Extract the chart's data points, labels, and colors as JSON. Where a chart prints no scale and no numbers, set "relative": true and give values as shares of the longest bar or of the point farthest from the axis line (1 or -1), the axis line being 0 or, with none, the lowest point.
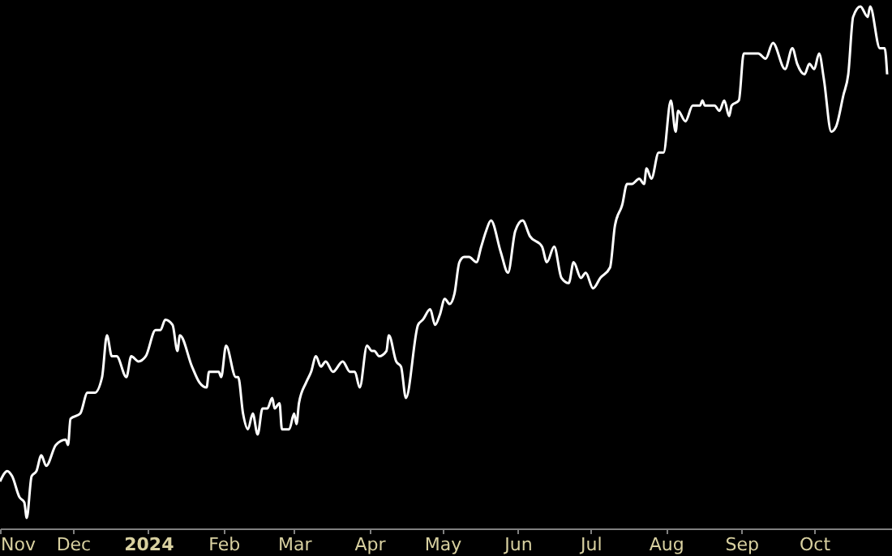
{
  "chart_data": {
    "type": "line",
    "relative": true,
    "x": [
      "2023-11-01",
      "2023-11-04",
      "2023-11-06",
      "2023-11-09",
      "2023-11-11",
      "2023-11-12",
      "2023-11-14",
      "2023-11-16",
      "2023-11-18",
      "2023-11-20",
      "2023-11-24",
      "2023-11-28",
      "2023-11-29",
      "2023-11-30",
      "2023-12-04",
      "2023-12-07",
      "2023-12-10",
      "2023-12-13",
      "2023-12-15",
      "2023-12-17",
      "2023-12-19",
      "2023-12-23",
      "2023-12-25",
      "2023-12-28",
      "2023-12-31",
      "2024-01-04",
      "2024-01-06",
      "2024-01-08",
      "2024-01-11",
      "2024-01-13",
      "2024-01-14",
      "2024-01-19",
      "2024-01-22",
      "2024-01-25",
      "2024-01-26",
      "2024-01-30",
      "2024-01-31",
      "2024-02-02",
      "2024-02-06",
      "2024-02-07",
      "2024-02-09",
      "2024-02-11",
      "2024-02-13",
      "2024-02-15",
      "2024-02-17",
      "2024-02-19",
      "2024-02-21",
      "2024-02-22",
      "2024-02-24",
      "2024-02-25",
      "2024-02-28",
      "2024-03-01",
      "2024-03-02",
      "2024-03-03",
      "2024-03-06",
      "2024-03-08",
      "2024-03-10",
      "2024-03-12",
      "2024-03-14",
      "2024-03-17",
      "2024-03-21",
      "2024-03-24",
      "2024-03-26",
      "2024-03-28",
      "2024-03-31",
      "2024-04-02",
      "2024-04-03",
      "2024-04-05",
      "2024-04-08",
      "2024-04-09",
      "2024-04-12",
      "2024-04-14",
      "2024-04-16",
      "2024-04-21",
      "2024-04-23",
      "2024-04-26",
      "2024-04-28",
      "2024-04-30",
      "2024-05-02",
      "2024-05-04",
      "2024-05-06",
      "2024-05-08",
      "2024-05-10",
      "2024-05-12",
      "2024-05-15",
      "2024-05-17",
      "2024-05-19",
      "2024-05-21",
      "2024-05-25",
      "2024-05-28",
      "2024-05-31",
      "2024-06-03",
      "2024-06-06",
      "2024-06-11",
      "2024-06-13",
      "2024-06-16",
      "2024-06-19",
      "2024-06-22",
      "2024-06-24",
      "2024-06-27",
      "2024-06-29",
      "2024-07-02",
      "2024-07-05",
      "2024-07-09",
      "2024-07-11",
      "2024-07-14",
      "2024-07-16",
      "2024-07-18",
      "2024-07-21",
      "2024-07-23",
      "2024-07-24",
      "2024-07-26",
      "2024-07-29",
      "2024-07-31",
      "2024-08-03",
      "2024-08-05",
      "2024-08-06",
      "2024-08-09",
      "2024-08-12",
      "2024-08-15",
      "2024-08-16",
      "2024-08-17",
      "2024-08-21",
      "2024-08-23",
      "2024-08-25",
      "2024-08-27",
      "2024-08-28",
      "2024-08-31",
      "2024-09-02",
      "2024-09-05",
      "2024-09-08",
      "2024-09-11",
      "2024-09-14",
      "2024-09-19",
      "2024-09-22",
      "2024-09-24",
      "2024-09-27",
      "2024-09-29",
      "2024-10-01",
      "2024-10-03",
      "2024-10-05",
      "2024-10-08",
      "2024-10-10",
      "2024-10-13",
      "2024-10-15",
      "2024-10-17",
      "2024-10-20",
      "2024-10-23",
      "2024-10-24",
      "2024-10-28",
      "2024-10-30",
      "2024-10-31"
    ],
    "series": [
      {
        "color": "#ffffff",
        "values": [
          0.09,
          0.11,
          0.1,
          0.06,
          0.05,
          0.02,
          0.1,
          0.11,
          0.14,
          0.12,
          0.16,
          0.17,
          0.16,
          0.21,
          0.22,
          0.26,
          0.26,
          0.29,
          0.37,
          0.33,
          0.33,
          0.29,
          0.33,
          0.32,
          0.33,
          0.38,
          0.38,
          0.4,
          0.39,
          0.34,
          0.37,
          0.31,
          0.28,
          0.27,
          0.3,
          0.3,
          0.29,
          0.35,
          0.29,
          0.29,
          0.22,
          0.19,
          0.22,
          0.18,
          0.23,
          0.23,
          0.25,
          0.23,
          0.24,
          0.19,
          0.19,
          0.22,
          0.2,
          0.24,
          0.28,
          0.3,
          0.33,
          0.31,
          0.32,
          0.3,
          0.32,
          0.3,
          0.3,
          0.27,
          0.35,
          0.34,
          0.34,
          0.33,
          0.34,
          0.37,
          0.32,
          0.31,
          0.25,
          0.39,
          0.4,
          0.42,
          0.39,
          0.41,
          0.44,
          0.43,
          0.45,
          0.51,
          0.52,
          0.52,
          0.51,
          0.54,
          0.57,
          0.59,
          0.53,
          0.49,
          0.57,
          0.59,
          0.56,
          0.54,
          0.51,
          0.54,
          0.48,
          0.47,
          0.51,
          0.48,
          0.49,
          0.46,
          0.48,
          0.5,
          0.58,
          0.62,
          0.66,
          0.66,
          0.67,
          0.66,
          0.69,
          0.67,
          0.72,
          0.72,
          0.82,
          0.76,
          0.8,
          0.78,
          0.81,
          0.81,
          0.82,
          0.81,
          0.81,
          0.8,
          0.82,
          0.79,
          0.81,
          0.82,
          0.91,
          0.91,
          0.91,
          0.9,
          0.93,
          0.88,
          0.92,
          0.89,
          0.87,
          0.89,
          0.88,
          0.91,
          0.86,
          0.76,
          0.77,
          0.83,
          0.87,
          0.98,
          1,
          0.98,
          1,
          0.92,
          0.92,
          0.87
        ]
      }
    ],
    "xlim": [
      "2023-11-01",
      "2024-11-02"
    ],
    "xticks": [
      {
        "value": "2023-11-01",
        "label": "Nov"
      },
      {
        "value": "2023-12-01",
        "label": "Dec"
      },
      {
        "value": "2024-01-01",
        "label": "2024"
      },
      {
        "value": "2024-02-01",
        "label": "Feb"
      },
      {
        "value": "2024-03-01",
        "label": "Mar"
      },
      {
        "value": "2024-04-01",
        "label": "Apr"
      },
      {
        "value": "2024-05-01",
        "label": "May"
      },
      {
        "value": "2024-06-01",
        "label": "Jun"
      },
      {
        "value": "2024-07-01",
        "label": "Jul"
      },
      {
        "value": "2024-08-01",
        "label": "Aug"
      },
      {
        "value": "2024-09-01",
        "label": "Sep"
      },
      {
        "value": "2024-10-01",
        "label": "Oct"
      }
    ]
  }
}
